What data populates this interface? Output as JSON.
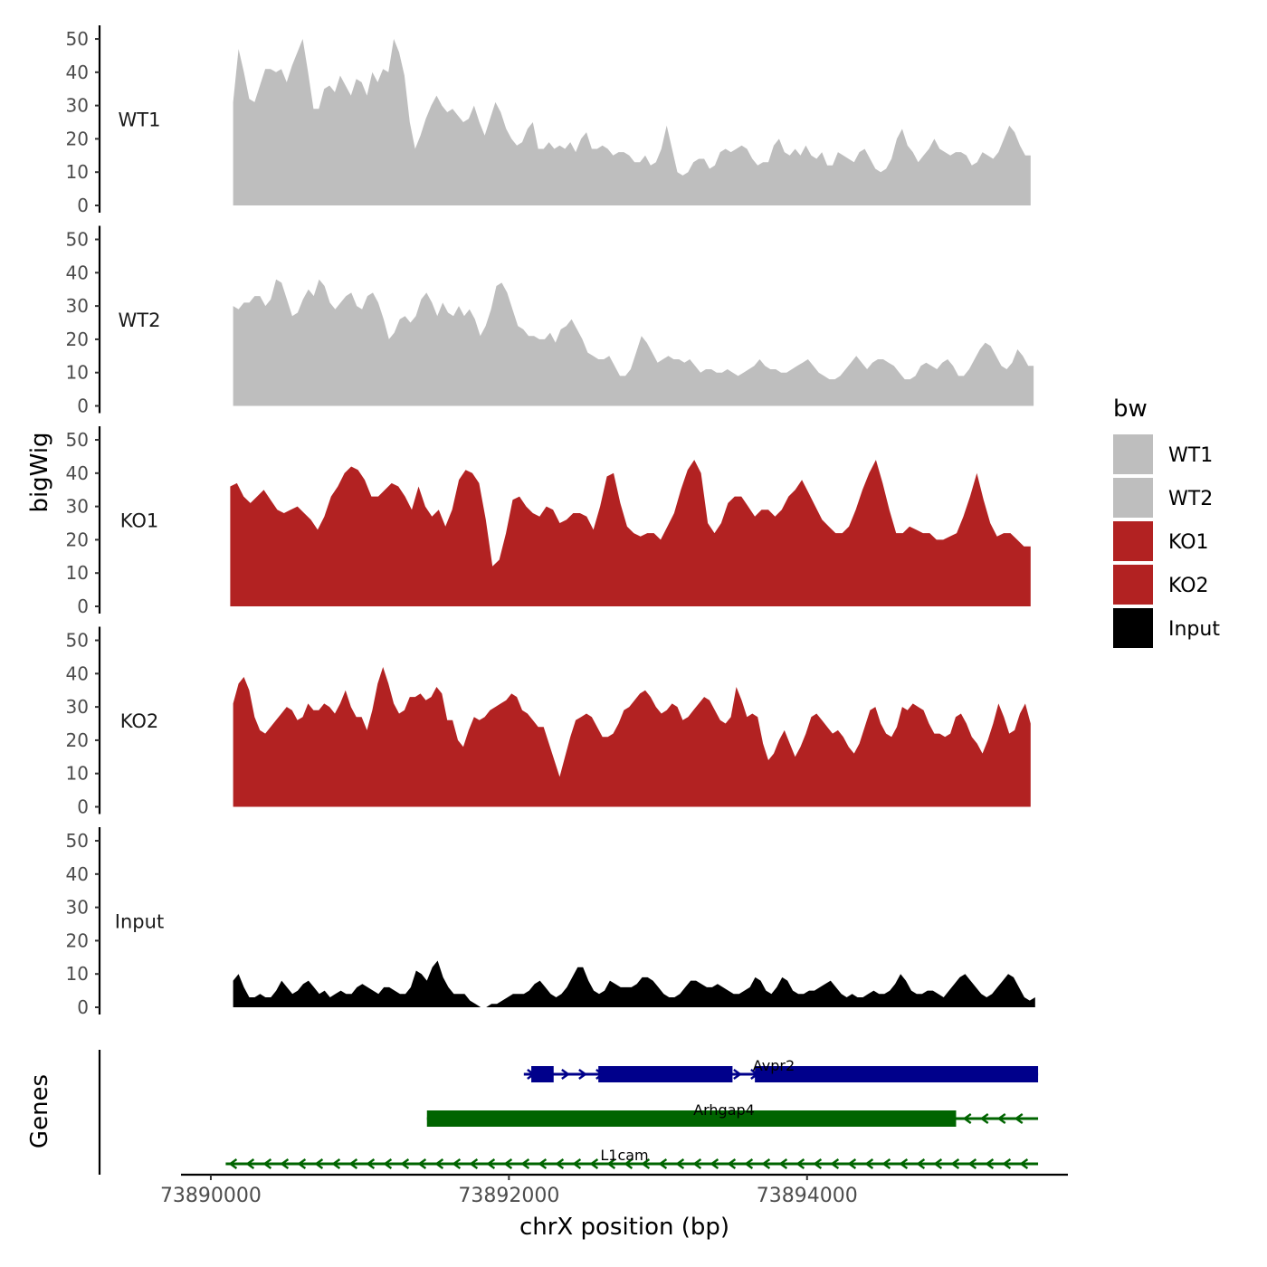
{
  "chart_data": {
    "type": "area",
    "title": "",
    "xlabel": "chrX position (bp)",
    "ylabel": "bigWig",
    "genes_label": "Genes",
    "xlim": [
      73889800,
      73895750
    ],
    "ylim": [
      0,
      53
    ],
    "x_ticks": [
      73890000,
      73892000,
      73894000
    ],
    "x_tick_labels": [
      "73890000",
      "73892000",
      "73894000"
    ],
    "y_ticks": [
      0,
      10,
      20,
      30,
      40,
      50
    ],
    "y_tick_labels": [
      "0",
      "10",
      "20",
      "30",
      "40",
      "50"
    ],
    "legend": {
      "title": "bw",
      "entries": [
        {
          "label": "WT1",
          "color": "#BEBEBE"
        },
        {
          "label": "WT2",
          "color": "#BEBEBE"
        },
        {
          "label": "KO1",
          "color": "#B22222"
        },
        {
          "label": "KO2",
          "color": "#B22222"
        },
        {
          "label": "Input",
          "color": "#000000"
        }
      ]
    },
    "series": [
      {
        "name": "WT1",
        "color": "#BEBEBE",
        "x_start": 73890150,
        "x_end": 73895500,
        "values": [
          31,
          47,
          40,
          32,
          31,
          36,
          41,
          41,
          40,
          41,
          37,
          42,
          46,
          50,
          40,
          29,
          29,
          35,
          36,
          34,
          39,
          36,
          33,
          38,
          37,
          33,
          40,
          37,
          41,
          40,
          50,
          46,
          39,
          25,
          17,
          21,
          26,
          30,
          33,
          30,
          28,
          29,
          27,
          25,
          26,
          30,
          25,
          21,
          26,
          31,
          28,
          23,
          20,
          18,
          19,
          23,
          25,
          17,
          17,
          19,
          17,
          18,
          17,
          19,
          16,
          20,
          22,
          17,
          17,
          18,
          17,
          15,
          16,
          16,
          15,
          13,
          13,
          15,
          12,
          13,
          17,
          24,
          17,
          10,
          9,
          10,
          13,
          14,
          14,
          11,
          12,
          16,
          17,
          16,
          17,
          18,
          17,
          14,
          12,
          13,
          13,
          18,
          20,
          16,
          15,
          17,
          15,
          18,
          15,
          14,
          16,
          12,
          12,
          16,
          15,
          14,
          13,
          16,
          17,
          14,
          11,
          10,
          11,
          14,
          20,
          23,
          18,
          16,
          13,
          15,
          17,
          20,
          17,
          16,
          15,
          16,
          16,
          15,
          12,
          13,
          16,
          15,
          14,
          16,
          20,
          24,
          22,
          18,
          15,
          15
        ]
      },
      {
        "name": "WT2",
        "color": "#BEBEBE",
        "x_start": 73890150,
        "x_end": 73895520,
        "values": [
          30,
          29,
          31,
          31,
          33,
          33,
          30,
          32,
          38,
          37,
          32,
          27,
          28,
          32,
          35,
          33,
          38,
          36,
          31,
          29,
          31,
          33,
          34,
          30,
          29,
          33,
          34,
          31,
          26,
          20,
          22,
          26,
          27,
          25,
          27,
          32,
          34,
          31,
          27,
          31,
          28,
          27,
          30,
          27,
          29,
          26,
          21,
          24,
          29,
          36,
          37,
          34,
          29,
          24,
          23,
          21,
          21,
          20,
          20,
          22,
          19,
          23,
          24,
          26,
          23,
          20,
          16,
          15,
          14,
          14,
          15,
          12,
          9,
          9,
          11,
          16,
          21,
          19,
          16,
          13,
          14,
          15,
          14,
          14,
          13,
          14,
          12,
          10,
          11,
          11,
          10,
          10,
          11,
          10,
          9,
          10,
          11,
          12,
          14,
          12,
          11,
          11,
          10,
          10,
          11,
          12,
          13,
          14,
          12,
          10,
          9,
          8,
          8,
          9,
          11,
          13,
          15,
          13,
          11,
          13,
          14,
          14,
          13,
          12,
          10,
          8,
          8,
          9,
          12,
          13,
          12,
          11,
          13,
          14,
          12,
          9,
          9,
          11,
          14,
          17,
          19,
          18,
          15,
          12,
          11,
          13,
          17,
          15,
          12,
          12
        ]
      },
      {
        "name": "KO1",
        "color": "#B22222",
        "x_start": 73890130,
        "x_end": 73895500,
        "values": [
          36,
          37,
          33,
          31,
          33,
          35,
          32,
          29,
          28,
          29,
          30,
          28,
          26,
          23,
          27,
          33,
          36,
          40,
          42,
          41,
          38,
          33,
          33,
          35,
          37,
          36,
          33,
          29,
          36,
          30,
          27,
          29,
          24,
          29,
          38,
          41,
          40,
          37,
          26,
          12,
          14,
          22,
          32,
          33,
          30,
          28,
          27,
          30,
          29,
          25,
          26,
          28,
          28,
          27,
          23,
          30,
          39,
          40,
          31,
          24,
          22,
          21,
          22,
          22,
          20,
          24,
          28,
          35,
          41,
          44,
          40,
          25,
          22,
          25,
          31,
          33,
          33,
          30,
          27,
          29,
          29,
          27,
          29,
          33,
          35,
          38,
          34,
          30,
          26,
          24,
          22,
          22,
          24,
          29,
          35,
          40,
          44,
          37,
          29,
          22,
          22,
          24,
          23,
          22,
          22,
          20,
          20,
          21,
          22,
          27,
          33,
          40,
          32,
          25,
          21,
          22,
          22,
          20,
          18,
          18
        ]
      },
      {
        "name": "KO2",
        "color": "#B22222",
        "x_start": 73890150,
        "x_end": 73895500,
        "values": [
          31,
          37,
          39,
          35,
          27,
          23,
          22,
          24,
          26,
          28,
          30,
          29,
          26,
          27,
          31,
          29,
          29,
          31,
          30,
          28,
          31,
          35,
          30,
          27,
          27,
          23,
          29,
          37,
          42,
          37,
          31,
          28,
          29,
          33,
          33,
          34,
          32,
          33,
          36,
          34,
          26,
          26,
          20,
          18,
          23,
          27,
          26,
          27,
          29,
          30,
          31,
          32,
          34,
          33,
          29,
          28,
          26,
          24,
          24,
          19,
          14,
          9,
          15,
          21,
          26,
          27,
          28,
          27,
          24,
          21,
          21,
          22,
          25,
          29,
          30,
          32,
          34,
          35,
          33,
          30,
          28,
          29,
          31,
          30,
          26,
          27,
          29,
          31,
          33,
          32,
          29,
          26,
          25,
          27,
          36,
          32,
          27,
          28,
          27,
          19,
          14,
          16,
          20,
          23,
          19,
          15,
          18,
          22,
          27,
          28,
          26,
          24,
          22,
          23,
          21,
          18,
          16,
          19,
          24,
          29,
          30,
          25,
          22,
          21,
          24,
          30,
          29,
          31,
          30,
          29,
          25,
          22,
          22,
          21,
          22,
          27,
          28,
          25,
          21,
          19,
          16,
          20,
          25,
          31,
          27,
          22,
          23,
          28,
          31,
          25
        ]
      },
      {
        "name": "Input",
        "color": "#000000",
        "x_start": 73890150,
        "x_end": 73895530,
        "values": [
          8,
          10,
          6,
          3,
          3,
          4,
          3,
          3,
          5,
          8,
          6,
          4,
          5,
          7,
          8,
          6,
          4,
          5,
          3,
          4,
          5,
          4,
          4,
          6,
          7,
          6,
          5,
          4,
          6,
          6,
          5,
          4,
          4,
          6,
          11,
          10,
          8,
          12,
          14,
          9,
          6,
          4,
          4,
          4,
          2,
          1,
          0,
          0,
          1,
          1,
          2,
          3,
          4,
          4,
          4,
          5,
          7,
          8,
          6,
          4,
          3,
          4,
          6,
          9,
          12,
          12,
          8,
          5,
          4,
          5,
          8,
          7,
          6,
          6,
          6,
          7,
          9,
          9,
          8,
          6,
          4,
          3,
          3,
          4,
          6,
          8,
          8,
          7,
          6,
          6,
          7,
          6,
          5,
          4,
          4,
          5,
          6,
          9,
          8,
          5,
          4,
          6,
          9,
          8,
          5,
          4,
          4,
          5,
          5,
          6,
          7,
          8,
          6,
          4,
          3,
          4,
          3,
          3,
          4,
          5,
          4,
          4,
          5,
          7,
          10,
          8,
          5,
          4,
          4,
          5,
          5,
          4,
          3,
          5,
          7,
          9,
          10,
          8,
          6,
          4,
          3,
          4,
          6,
          8,
          10,
          9,
          6,
          3,
          2,
          3
        ]
      }
    ],
    "genes": [
      {
        "name": "Avpr2",
        "strand": "+",
        "color": "#00008B",
        "start": 73892100,
        "end": 73895550,
        "exons": [
          [
            73892150,
            73892300
          ],
          [
            73892600,
            73893500
          ],
          [
            73893650,
            73895550
          ]
        ]
      },
      {
        "name": "Arhgap4",
        "strand": "-",
        "color": "#006400",
        "start": 73891450,
        "end": 73895550,
        "exons": [
          [
            73891450,
            73895000
          ]
        ]
      },
      {
        "name": "L1cam",
        "strand": "-",
        "color": "#006400",
        "start": 73890100,
        "end": 73895550,
        "exons": []
      }
    ]
  }
}
